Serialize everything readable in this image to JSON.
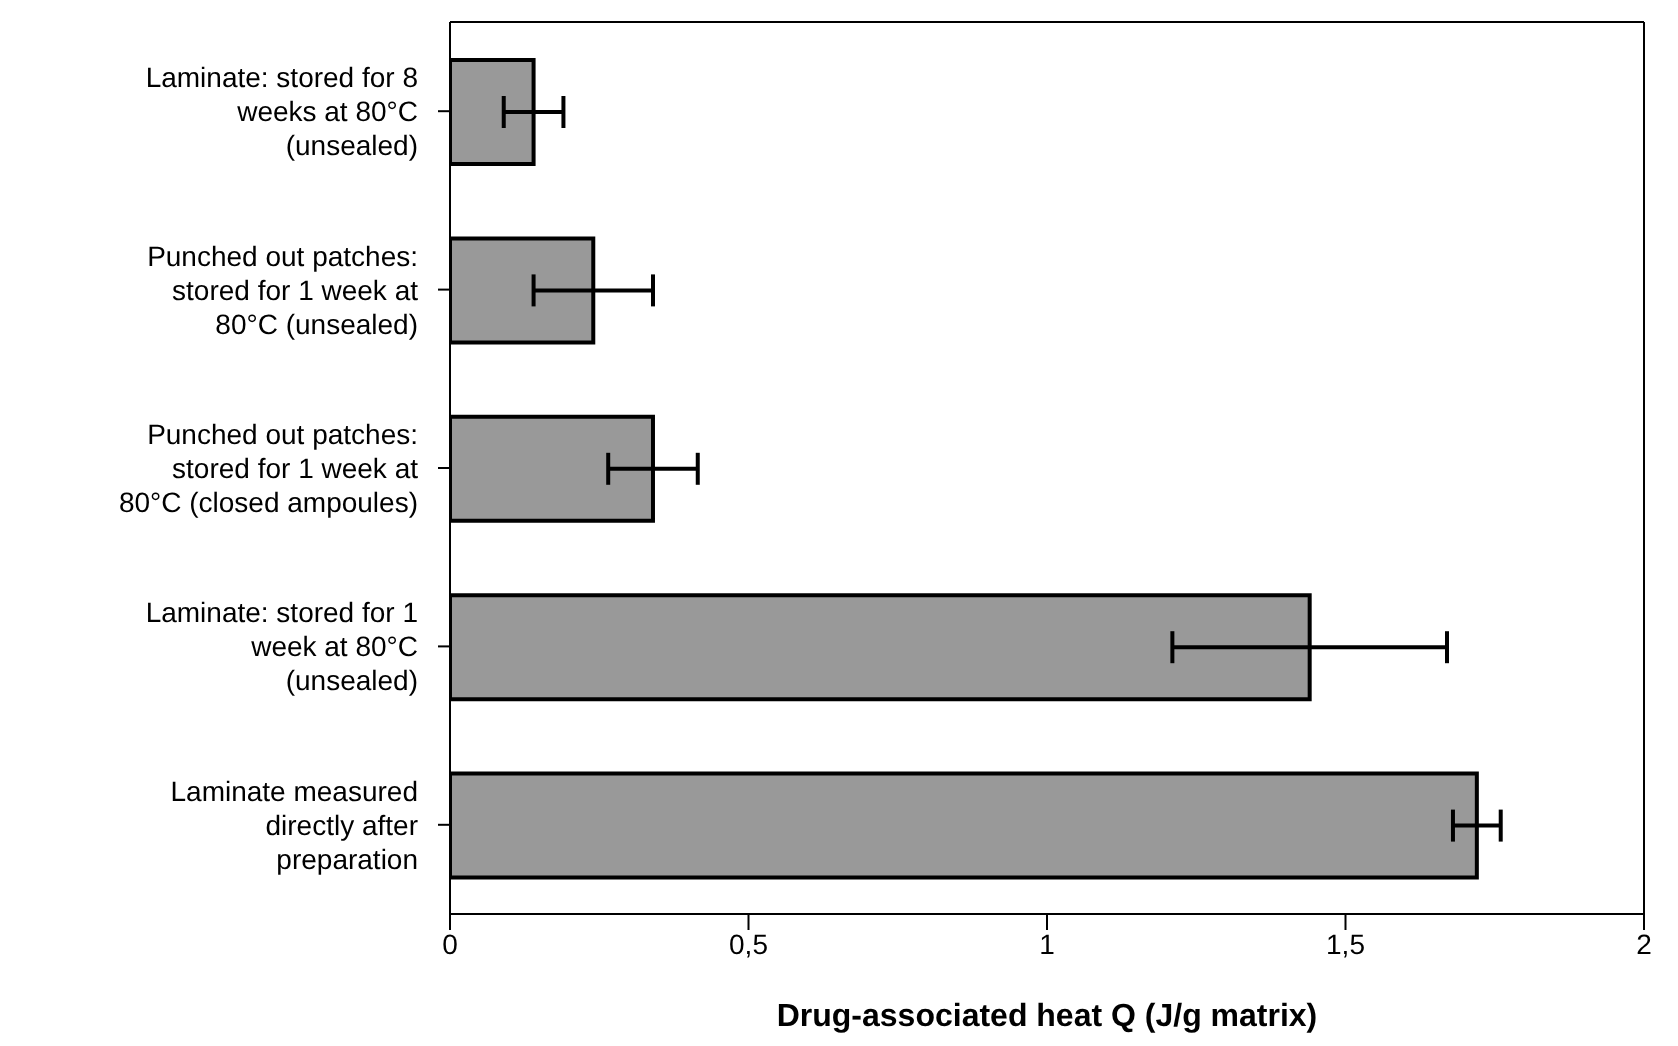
{
  "chart_data": {
    "type": "bar",
    "orientation": "horizontal",
    "categories": [
      "Laminate: stored for 8 weeks at 80°C (unsealed)",
      "Punched out patches: stored for 1 week at 80°C (unsealed)",
      "Punched out patches: stored for 1 week at 80°C (closed ampoules)",
      "Laminate: stored for 1 week at 80°C (unsealed)",
      "Laminate measured directly after preparation"
    ],
    "values": [
      0.14,
      0.24,
      0.34,
      1.44,
      1.72
    ],
    "errors": [
      0.05,
      0.1,
      0.075,
      0.23,
      0.04
    ],
    "color": "#999999",
    "xlabel": "Drug-associated heat Q (J/g matrix)",
    "xlim": [
      0,
      2
    ],
    "xticks": [
      0,
      {
        "value": 0.5,
        "label": "0,5"
      },
      1,
      {
        "value": 1.5,
        "label": "1,5"
      },
      2
    ],
    "grid": false,
    "legend": false
  }
}
